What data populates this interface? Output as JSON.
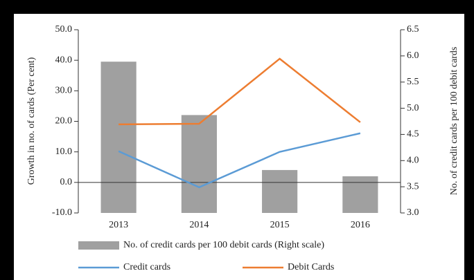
{
  "chart_data": {
    "type": "bar_line",
    "categories": [
      "2013",
      "2014",
      "2015",
      "2016"
    ],
    "y_label": "Growth in no. of cards (Per cent)",
    "y2_label": "No. of credit cards per 100 debit cards",
    "ylim": [
      -10,
      50
    ],
    "yticks": [
      {
        "value": -10,
        "label": "-10.0"
      },
      {
        "value": 0,
        "label": "0.0"
      },
      {
        "value": 10,
        "label": "10.0"
      },
      {
        "value": 20,
        "label": "20.0"
      },
      {
        "value": 30,
        "label": "30.0"
      },
      {
        "value": 40,
        "label": "40.0"
      },
      {
        "value": 50,
        "label": "50.0"
      }
    ],
    "y2lim": [
      3,
      6.5
    ],
    "y2ticks": [
      {
        "value": 3,
        "label": "3.0"
      },
      3.5,
      {
        "value": 4,
        "label": "4.0"
      },
      4.5,
      {
        "value": 5,
        "label": "5.0"
      },
      5.5,
      {
        "value": 6,
        "label": "6.0"
      },
      6.5
    ],
    "series": [
      {
        "name": "No. of credit cards per 100 debit cards (Right scale)",
        "type": "bar",
        "axis": "y2",
        "color": "#a0a0a0",
        "values": [
          5.89,
          4.87,
          3.82,
          3.7
        ]
      },
      {
        "name": "Credit cards",
        "type": "line",
        "color": "#5b9bd5",
        "values": [
          10.2,
          -1.6,
          10.0,
          16.1
        ]
      },
      {
        "name": "Debit Cards",
        "type": "line",
        "color": "#ed7d31",
        "values": [
          19.0,
          19.2,
          40.5,
          19.7
        ]
      }
    ]
  }
}
